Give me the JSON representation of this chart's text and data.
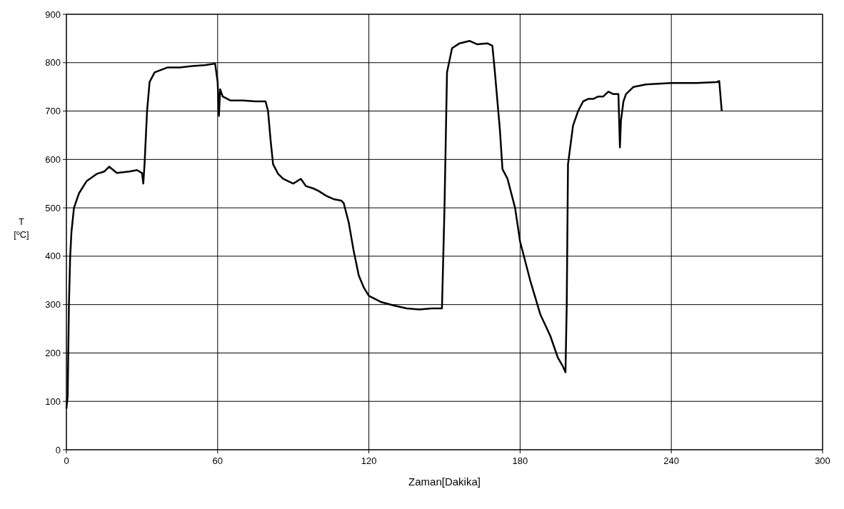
{
  "chart_data": {
    "type": "line",
    "xlabel": "Zaman[Dakika]",
    "ylabel": "T [ºC]",
    "xlim": [
      0,
      300
    ],
    "xticks": [
      0,
      60,
      120,
      180,
      240,
      300
    ],
    "ylim": [
      0,
      900
    ],
    "yticks": [
      0,
      100,
      200,
      300,
      400,
      500,
      600,
      700,
      800,
      900
    ],
    "grid": true,
    "series": [
      {
        "color": "#000000",
        "x": [
          0,
          0.5,
          1,
          1.5,
          2,
          3,
          5,
          8,
          12,
          15,
          17,
          20,
          25,
          28,
          30,
          30.5,
          31,
          32,
          33,
          35,
          40,
          45,
          50,
          55,
          59,
          60,
          60.5,
          61,
          62,
          65,
          70,
          75,
          79,
          80,
          81,
          82,
          84,
          86,
          88,
          90,
          93,
          95,
          98,
          100,
          103,
          106,
          109,
          110,
          112,
          114,
          116,
          118,
          120,
          125,
          130,
          135,
          140,
          145,
          149,
          150,
          151,
          153,
          156,
          160,
          163,
          167,
          169,
          170,
          172,
          173,
          175,
          178,
          180,
          184,
          188,
          192,
          195,
          197,
          198,
          198.5,
          199,
          201,
          203,
          205,
          207,
          209,
          211,
          213,
          215,
          217,
          219,
          219.6,
          220,
          221,
          222,
          225,
          230,
          240,
          250,
          258,
          259,
          260
        ],
        "values": [
          85,
          110,
          300,
          400,
          450,
          500,
          530,
          555,
          570,
          575,
          585,
          572,
          575,
          578,
          572,
          550,
          590,
          700,
          760,
          780,
          790,
          790,
          793,
          795,
          798,
          760,
          690,
          745,
          730,
          722,
          722,
          720,
          720,
          700,
          640,
          590,
          570,
          560,
          555,
          550,
          560,
          545,
          540,
          535,
          525,
          518,
          515,
          510,
          470,
          410,
          360,
          335,
          318,
          305,
          298,
          292,
          290,
          292,
          292,
          500,
          780,
          830,
          840,
          845,
          838,
          840,
          835,
          780,
          660,
          580,
          560,
          500,
          430,
          350,
          280,
          235,
          190,
          172,
          160,
          300,
          590,
          670,
          700,
          720,
          725,
          725,
          730,
          730,
          740,
          735,
          735,
          625,
          680,
          720,
          735,
          750,
          755,
          758,
          758,
          760,
          762,
          700
        ]
      }
    ]
  }
}
